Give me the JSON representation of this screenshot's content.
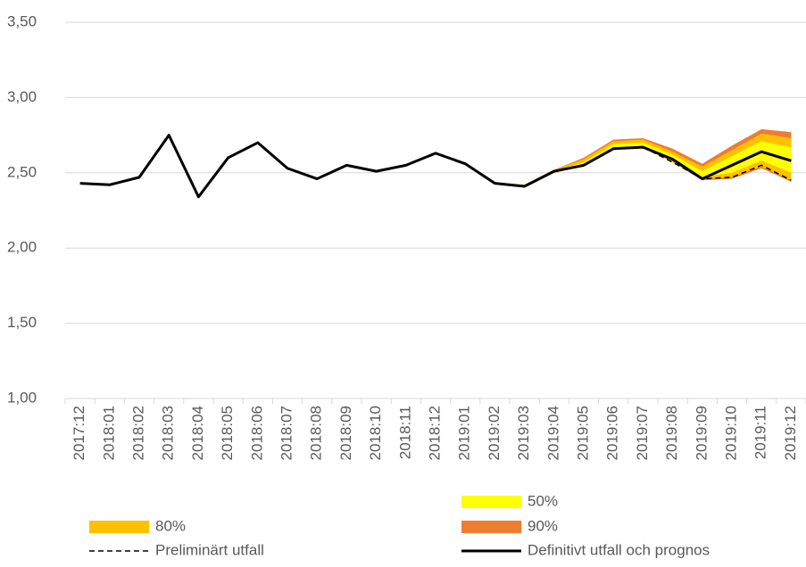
{
  "chart_data": {
    "type": "line",
    "categories": [
      "2017:12",
      "2018:01",
      "2018:02",
      "2018:03",
      "2018:04",
      "2018:05",
      "2018:06",
      "2018:07",
      "2018:08",
      "2018:09",
      "2018:10",
      "2018:11",
      "2018:12",
      "2019:01",
      "2019:02",
      "2019:03",
      "2019:04",
      "2019:05",
      "2019:06",
      "2019:07",
      "2019:08",
      "2019:09",
      "2019:10",
      "2019:11",
      "2019:12"
    ],
    "ylim": [
      1.0,
      3.5
    ],
    "yticks": [
      {
        "value": 1.0,
        "label": "1,00"
      },
      {
        "value": 1.5,
        "label": "1,50"
      },
      {
        "value": 2.0,
        "label": "2,00"
      },
      {
        "value": 2.5,
        "label": "2,50"
      },
      {
        "value": 3.0,
        "label": "3,00"
      },
      {
        "value": 3.5,
        "label": "3,50"
      }
    ],
    "grid": true,
    "bands": [
      {
        "name": "90%",
        "color": "#ed7d31",
        "lower": [
          null,
          null,
          null,
          null,
          null,
          null,
          null,
          null,
          null,
          null,
          null,
          null,
          null,
          null,
          2.43,
          2.41,
          2.51,
          2.54,
          2.66,
          2.67,
          2.57,
          2.45,
          2.46,
          2.53,
          2.44
        ],
        "upper": [
          null,
          null,
          null,
          null,
          null,
          null,
          null,
          null,
          null,
          null,
          null,
          null,
          null,
          null,
          2.43,
          2.42,
          2.52,
          2.6,
          2.72,
          2.73,
          2.66,
          2.56,
          2.68,
          2.79,
          2.77
        ]
      },
      {
        "name": "80%",
        "color": "#ffc000",
        "lower": [
          null,
          null,
          null,
          null,
          null,
          null,
          null,
          null,
          null,
          null,
          null,
          null,
          null,
          null,
          2.43,
          2.41,
          2.51,
          2.54,
          2.66,
          2.67,
          2.57,
          2.46,
          2.47,
          2.54,
          2.45
        ],
        "upper": [
          null,
          null,
          null,
          null,
          null,
          null,
          null,
          null,
          null,
          null,
          null,
          null,
          null,
          null,
          2.43,
          2.42,
          2.52,
          2.59,
          2.71,
          2.72,
          2.64,
          2.54,
          2.65,
          2.76,
          2.73
        ]
      },
      {
        "name": "50%",
        "color": "#ffff00",
        "lower": [
          null,
          null,
          null,
          null,
          null,
          null,
          null,
          null,
          null,
          null,
          null,
          null,
          null,
          null,
          2.43,
          2.41,
          2.51,
          2.55,
          2.67,
          2.68,
          2.58,
          2.47,
          2.5,
          2.58,
          2.5
        ],
        "upper": [
          null,
          null,
          null,
          null,
          null,
          null,
          null,
          null,
          null,
          null,
          null,
          null,
          null,
          null,
          2.43,
          2.41,
          2.51,
          2.57,
          2.69,
          2.7,
          2.62,
          2.51,
          2.61,
          2.71,
          2.67
        ]
      }
    ],
    "series": [
      {
        "name": "Preliminärt utfall",
        "color": "#000000",
        "dashed": true,
        "values": [
          null,
          null,
          null,
          null,
          null,
          null,
          null,
          null,
          null,
          null,
          null,
          null,
          null,
          null,
          null,
          null,
          null,
          null,
          null,
          2.67,
          2.57,
          2.46,
          2.47,
          2.55,
          2.45
        ]
      },
      {
        "name": "Definitivt utfall och prognos",
        "color": "#000000",
        "dashed": false,
        "values": [
          2.43,
          2.42,
          2.47,
          2.75,
          2.34,
          2.6,
          2.7,
          2.53,
          2.46,
          2.55,
          2.51,
          2.55,
          2.63,
          2.56,
          2.43,
          2.41,
          2.51,
          2.55,
          2.66,
          2.67,
          2.59,
          2.46,
          2.55,
          2.64,
          2.58
        ]
      }
    ]
  }
}
